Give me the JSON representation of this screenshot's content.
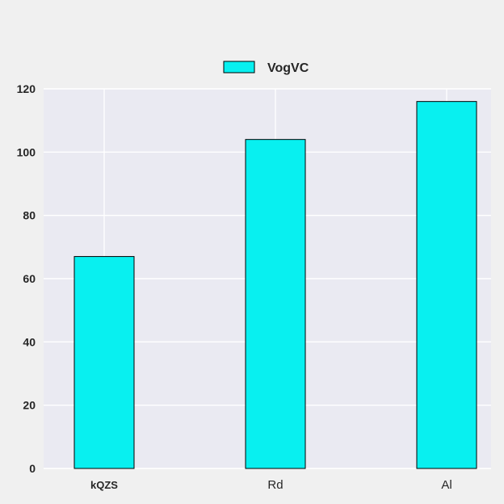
{
  "chart_data": {
    "type": "bar",
    "categories": [
      "kQZS",
      "Rd",
      "Al"
    ],
    "series": [
      {
        "name": "VogVC",
        "values": [
          67,
          104,
          116
        ]
      }
    ],
    "ylim": [
      0,
      120
    ],
    "yticks": [
      0,
      20,
      40,
      60,
      80,
      100,
      120
    ],
    "grid": true,
    "legend": "top-center",
    "colors": {
      "bar": "#08f0f0",
      "bar_edge": "#000000",
      "plot_background": "#eaeaf2",
      "page_background": "#f0f0f0",
      "grid": "#ffffff"
    }
  }
}
